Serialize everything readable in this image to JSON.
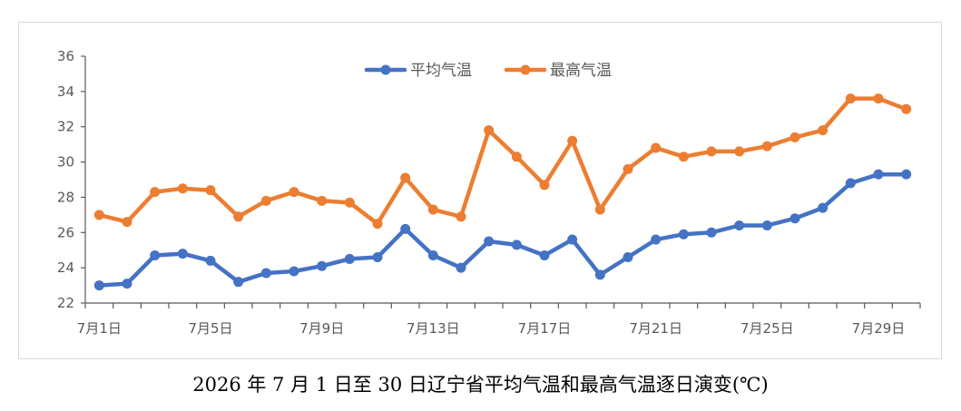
{
  "caption": "2026 年 7 月 1 日至 30 日辽宁省平均气温和最高气温逐日演变(℃)",
  "chart_data": {
    "type": "line",
    "title": "",
    "xlabel": "",
    "ylabel": "",
    "ylim": [
      22,
      36
    ],
    "yticks": [
      22,
      24,
      26,
      28,
      30,
      32,
      34,
      36
    ],
    "x": [
      "7月1日",
      "7月2日",
      "7月3日",
      "7月4日",
      "7月5日",
      "7月6日",
      "7月7日",
      "7月8日",
      "7月9日",
      "7月10日",
      "7月11日",
      "7月12日",
      "7月13日",
      "7月14日",
      "7月15日",
      "7月16日",
      "7月17日",
      "7月18日",
      "7月19日",
      "7月20日",
      "7月21日",
      "7月22日",
      "7月23日",
      "7月24日",
      "7月25日",
      "7月26日",
      "7月27日",
      "7月28日",
      "7月29日",
      "7月30日"
    ],
    "xtick_labels": [
      "7月1日",
      "7月5日",
      "7月9日",
      "7月13日",
      "7月17日",
      "7月21日",
      "7月25日",
      "7月29日"
    ],
    "grid": false,
    "legend": "top-center",
    "series": [
      {
        "name": "平均气温",
        "color": "#4472C4",
        "values": [
          23.0,
          23.1,
          24.7,
          24.8,
          24.4,
          23.2,
          23.7,
          23.8,
          24.1,
          24.5,
          24.6,
          26.2,
          24.7,
          24.0,
          25.5,
          25.3,
          24.7,
          25.6,
          23.6,
          24.6,
          25.6,
          25.9,
          26.0,
          26.4,
          26.4,
          26.8,
          27.4,
          28.8,
          29.3,
          29.3
        ]
      },
      {
        "name": "最高气温",
        "color": "#ED7D31",
        "values": [
          27.0,
          26.6,
          28.3,
          28.5,
          28.4,
          26.9,
          27.8,
          28.3,
          27.8,
          27.7,
          26.5,
          29.1,
          27.3,
          26.9,
          31.8,
          30.3,
          28.7,
          31.2,
          27.3,
          29.6,
          30.8,
          30.3,
          30.6,
          30.6,
          30.9,
          31.4,
          31.8,
          33.6,
          33.6,
          33.0
        ]
      }
    ]
  }
}
